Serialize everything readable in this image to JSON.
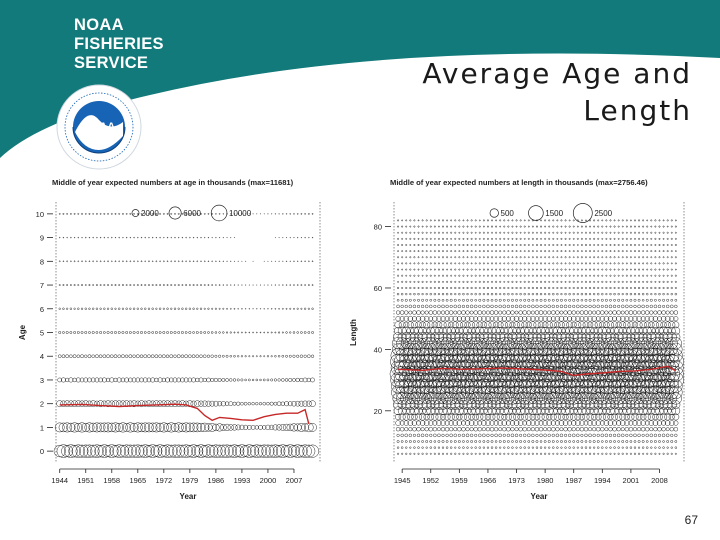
{
  "header": {
    "logo_lines": [
      "NOAA",
      "FISHERIES",
      "SERVICE"
    ],
    "title_lines": [
      "Average Age and",
      "Length"
    ],
    "seal_label": "NOAA",
    "colors": {
      "band": "#127a7a",
      "seal_blue": "#1763b5",
      "seal_ring": "#ffffff"
    }
  },
  "page_number": "67",
  "chart_data": [
    {
      "type": "scatter",
      "subtype": "bubble",
      "title": "Middle of year expected numbers at age in thousands (max=11681)",
      "xlabel": "Year",
      "ylabel": "Age",
      "xlim": [
        1943,
        2014
      ],
      "ylim": [
        -0.5,
        10.5
      ],
      "x_ticks": [
        1944,
        1951,
        1958,
        1965,
        1972,
        1979,
        1986,
        1993,
        2000,
        2007
      ],
      "y_ticks": [
        0,
        1,
        2,
        3,
        4,
        5,
        6,
        7,
        8,
        9,
        10
      ],
      "legend": {
        "placement": "top",
        "labels": [
          "2000",
          "6000",
          "10000"
        ],
        "values": [
          2000,
          6000,
          10000
        ]
      },
      "max_value": 11681,
      "year_range": [
        1944,
        2012
      ],
      "categories": [
        0,
        1,
        2,
        3,
        4,
        5,
        6,
        7,
        8,
        9,
        10
      ],
      "typical_values": [
        6000,
        3200,
        1400,
        700,
        360,
        200,
        120,
        70,
        45,
        30,
        60
      ],
      "series": [
        {
          "name": "Average age",
          "color": "#c62828",
          "x": [
            1944,
            1950,
            1955,
            1960,
            1965,
            1970,
            1975,
            1978,
            1981,
            1983,
            1985,
            1987,
            1990,
            1993,
            1996,
            1999,
            2002,
            2005,
            2008,
            2010,
            2011
          ],
          "y": [
            1.95,
            1.97,
            1.92,
            1.88,
            1.92,
            1.95,
            1.98,
            1.95,
            1.8,
            1.5,
            1.3,
            1.42,
            1.38,
            1.32,
            1.3,
            1.45,
            1.55,
            1.6,
            1.6,
            1.75,
            1.15
          ]
        }
      ]
    },
    {
      "type": "scatter",
      "subtype": "bubble",
      "title": "Middle of year expected numbers at length in thousands (max=2756.46)",
      "xlabel": "Year",
      "ylabel": "Length",
      "xlim": [
        1943,
        2014
      ],
      "ylim": [
        3,
        88
      ],
      "x_ticks": [
        1945,
        1952,
        1959,
        1966,
        1973,
        1980,
        1987,
        1994,
        2001,
        2008
      ],
      "y_ticks": [
        20,
        40,
        60,
        80
      ],
      "legend": {
        "placement": "top",
        "labels": [
          "500",
          "1500",
          "2500"
        ],
        "values": [
          500,
          1500,
          2500
        ]
      },
      "max_value": 2756.46,
      "year_range": [
        1944,
        2012
      ],
      "length_bins": {
        "from": 6,
        "to": 82,
        "step": 2
      },
      "peak_length": 33,
      "peak_value": 1600,
      "series": [
        {
          "name": "Average length",
          "color": "#c62828",
          "x": [
            1944,
            1950,
            1955,
            1960,
            1965,
            1970,
            1975,
            1980,
            1984,
            1987,
            1990,
            1994,
            1998,
            2002,
            2006,
            2010,
            2012
          ],
          "y": [
            33.5,
            33.2,
            33.8,
            33.5,
            33.7,
            33.9,
            33.6,
            33.3,
            32.8,
            31.5,
            32.0,
            32.3,
            32.8,
            33.0,
            33.5,
            34.5,
            33.0
          ]
        }
      ]
    }
  ]
}
